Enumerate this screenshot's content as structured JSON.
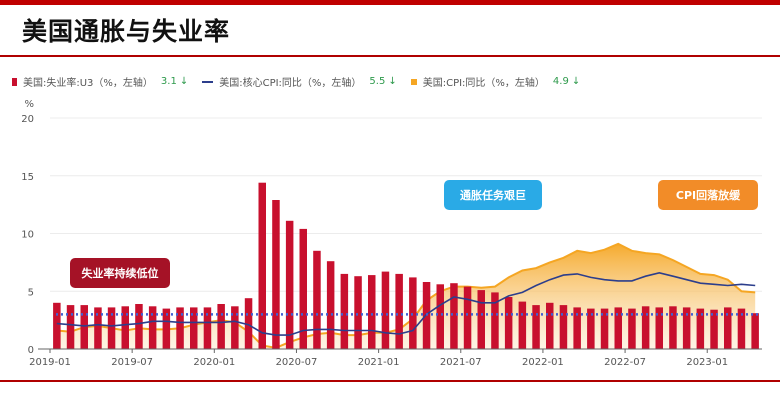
{
  "page": {
    "title": "美国通胀与失业率"
  },
  "chart_data": {
    "type": "bar",
    "y_unit": "%",
    "ylim": [
      0,
      20
    ],
    "yticks": [
      0,
      5,
      10,
      15,
      20
    ],
    "xticks": [
      "2019-01",
      "2019-07",
      "2020-01",
      "2020-07",
      "2021-01",
      "2021-07",
      "2022-01",
      "2022-07",
      "2023-01"
    ],
    "x": [
      "2019-01",
      "2019-02",
      "2019-03",
      "2019-04",
      "2019-05",
      "2019-06",
      "2019-07",
      "2019-08",
      "2019-09",
      "2019-10",
      "2019-11",
      "2019-12",
      "2020-01",
      "2020-02",
      "2020-03",
      "2020-04",
      "2020-05",
      "2020-06",
      "2020-07",
      "2020-08",
      "2020-09",
      "2020-10",
      "2020-11",
      "2020-12",
      "2021-01",
      "2021-02",
      "2021-03",
      "2021-04",
      "2021-05",
      "2021-06",
      "2021-07",
      "2021-08",
      "2021-09",
      "2021-10",
      "2021-11",
      "2021-12",
      "2022-01",
      "2022-02",
      "2022-03",
      "2022-04",
      "2022-05",
      "2022-06",
      "2022-07",
      "2022-08",
      "2022-09",
      "2022-10",
      "2022-11",
      "2022-12",
      "2023-01",
      "2023-02",
      "2023-03",
      "2023-04"
    ],
    "series": [
      {
        "name": "美国:失业率:U3（%，左轴）",
        "type": "bar",
        "color": "#c8102e",
        "latest": "3.1",
        "trend": "down",
        "values": [
          4.0,
          3.8,
          3.8,
          3.6,
          3.6,
          3.7,
          3.9,
          3.7,
          3.5,
          3.6,
          3.6,
          3.6,
          3.9,
          3.7,
          4.4,
          14.4,
          12.9,
          11.1,
          10.4,
          8.5,
          7.6,
          6.5,
          6.3,
          6.4,
          6.7,
          6.5,
          6.2,
          5.8,
          5.6,
          5.7,
          5.4,
          5.1,
          4.9,
          4.5,
          4.1,
          3.8,
          4.0,
          3.8,
          3.6,
          3.5,
          3.5,
          3.6,
          3.5,
          3.7,
          3.6,
          3.7,
          3.6,
          3.5,
          3.4,
          3.6,
          3.5,
          3.1
        ]
      },
      {
        "name": "美国:核心CPI:同比（%，左轴）",
        "type": "line",
        "color": "#2c3e8c",
        "latest": "5.5",
        "trend": "down",
        "values": [
          2.2,
          2.1,
          2.0,
          2.1,
          2.0,
          2.1,
          2.2,
          2.4,
          2.4,
          2.3,
          2.3,
          2.3,
          2.3,
          2.4,
          2.1,
          1.4,
          1.2,
          1.2,
          1.6,
          1.7,
          1.7,
          1.6,
          1.6,
          1.6,
          1.4,
          1.3,
          1.6,
          3.0,
          3.8,
          4.5,
          4.3,
          4.0,
          4.0,
          4.6,
          4.9,
          5.5,
          6.0,
          6.4,
          6.5,
          6.2,
          6.0,
          5.9,
          5.9,
          6.3,
          6.6,
          6.3,
          6.0,
          5.7,
          5.6,
          5.5,
          5.6,
          5.5
        ]
      },
      {
        "name": "美国:CPI:同比（%，左轴）",
        "type": "area",
        "color": "#f5a623",
        "latest": "4.9",
        "trend": "down",
        "values": [
          1.6,
          1.5,
          1.9,
          2.0,
          1.8,
          1.6,
          1.8,
          1.7,
          1.7,
          1.8,
          2.1,
          2.3,
          2.5,
          2.3,
          1.5,
          0.3,
          0.1,
          0.6,
          1.0,
          1.3,
          1.4,
          1.2,
          1.2,
          1.4,
          1.4,
          1.7,
          2.6,
          4.2,
          5.0,
          5.4,
          5.4,
          5.3,
          5.4,
          6.2,
          6.8,
          7.0,
          7.5,
          7.9,
          8.5,
          8.3,
          8.6,
          9.1,
          8.5,
          8.3,
          8.2,
          7.7,
          7.1,
          6.5,
          6.4,
          6.0,
          5.0,
          4.9
        ]
      },
      {
        "name": "",
        "type": "reference-line",
        "color": "#3f5fd6",
        "value": 3.0
      }
    ],
    "annotations": [
      "失业率持续低位",
      "通胀任务艰巨",
      "CPI回落放缓"
    ]
  }
}
